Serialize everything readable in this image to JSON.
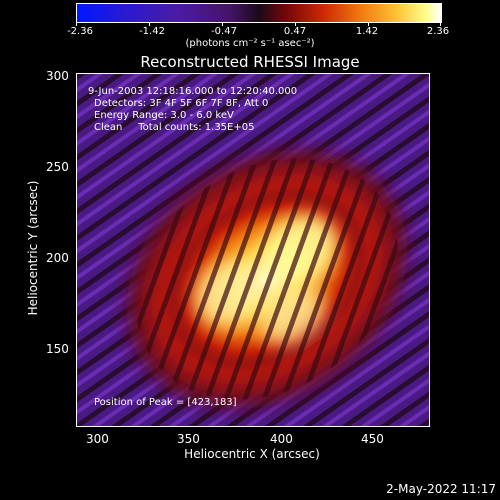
{
  "colorbar": {
    "tick_labels": [
      "-2.36",
      "-1.42",
      "-0.47",
      "0.47",
      "1.42",
      "2.36"
    ],
    "units": "(photons cm⁻² s⁻¹ asec⁻²)"
  },
  "title": "Reconstructed RHESSI Image",
  "info": {
    "line1": "9-Jun-2003 12:18:16.000 to 12:20:40.000",
    "line2": "Detectors: 3F 4F 5F 6F 7F 8F, Att 0",
    "line3": "Energy Range: 3.0 - 6.0 keV",
    "line4": "Clean     Total counts: 1.35E+05",
    "peak": "Position of Peak = [423,183]"
  },
  "axes": {
    "xlabel": "Heliocentric X (arcsec)",
    "ylabel": "Heliocentric Y (arcsec)",
    "x_ticks": [
      "300",
      "350",
      "400",
      "450"
    ],
    "y_ticks": [
      "300",
      "250",
      "200",
      "150"
    ],
    "x_range": [
      286,
      480
    ],
    "y_range": [
      108,
      302
    ]
  },
  "footer": "2-May-2022 11:17",
  "colors": {
    "background": "#000000",
    "cmap_low": "#0018ff",
    "cmap_mid": "#3a0c2a",
    "cmap_high": "#ffffff"
  }
}
